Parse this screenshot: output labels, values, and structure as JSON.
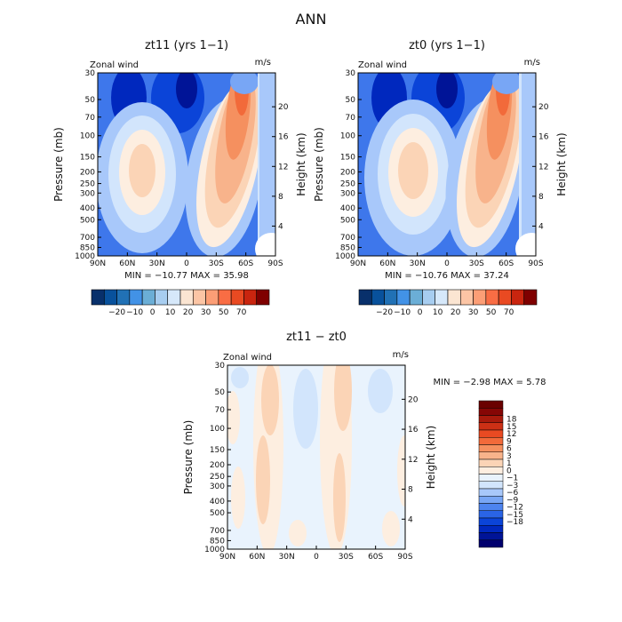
{
  "figure": {
    "title": "ANN"
  },
  "colors": {
    "ramp14": [
      "#08306b",
      "#08519c",
      "#2171b5",
      "#4292e6",
      "#6baed6",
      "#a7cdf0",
      "#d6e8fa",
      "#fbe5d2",
      "#fcc5a5",
      "#fc9e76",
      "#f96d44",
      "#e94a22",
      "#c9250f",
      "#7f0000"
    ],
    "ramp20": [
      "#00006e",
      "#001497",
      "#0028be",
      "#0b44d8",
      "#2a64e6",
      "#4d84ef",
      "#78a6f5",
      "#a8c8fa",
      "#d2e5fc",
      "#e9f3fd",
      "#fdeee0",
      "#fbd4b6",
      "#f8b38b",
      "#f5905f",
      "#f26a3a",
      "#e94a22",
      "#cc3015",
      "#a81a0c",
      "#860605",
      "#6a0000"
    ]
  },
  "chart_data": [
    {
      "type": "heatmap",
      "title": "zt11 (yrs 1−1)",
      "corner_left": "Zonal wind",
      "corner_right": "m/s",
      "ylabel": "Pressure (mb)",
      "ylabel_right": "Height (km)",
      "x_ticks": [
        "90N",
        "60N",
        "30N",
        "0",
        "30S",
        "60S",
        "90S"
      ],
      "y_ticks": [
        "30",
        "50",
        "70",
        "100",
        "150",
        "200",
        "250",
        "300",
        "400",
        "500",
        "700",
        "850",
        "1000"
      ],
      "height_ticks": [
        "20",
        "16",
        "12",
        "8",
        "4"
      ],
      "stats": "MIN = −10.77   MAX =  35.98",
      "colorbar_labels": [
        "−20",
        "−10",
        "0",
        "10",
        "20",
        "30",
        "50",
        "70"
      ],
      "min": -10.77,
      "max": 35.98
    },
    {
      "type": "heatmap",
      "title": "zt0 (yrs 1−1)",
      "corner_left": "Zonal wind",
      "corner_right": "m/s",
      "ylabel": "Pressure (mb)",
      "ylabel_right": "Height (km)",
      "x_ticks": [
        "90N",
        "60N",
        "30N",
        "0",
        "30S",
        "60S",
        "90S"
      ],
      "y_ticks": [
        "30",
        "50",
        "70",
        "100",
        "150",
        "200",
        "250",
        "300",
        "400",
        "500",
        "700",
        "850",
        "1000"
      ],
      "height_ticks": [
        "20",
        "16",
        "12",
        "8",
        "4"
      ],
      "stats": "MIN = −10.76   MAX =  37.24",
      "colorbar_labels": [
        "−20",
        "−10",
        "0",
        "10",
        "20",
        "30",
        "50",
        "70"
      ],
      "min": -10.76,
      "max": 37.24
    },
    {
      "type": "heatmap",
      "title": "zt11 − zt0",
      "corner_left": "Zonal wind",
      "corner_right": "m/s",
      "ylabel": "Pressure (mb)",
      "ylabel_right": "Height (km)",
      "x_ticks": [
        "90N",
        "60N",
        "30N",
        "0",
        "30S",
        "60S",
        "90S"
      ],
      "y_ticks": [
        "30",
        "50",
        "70",
        "100",
        "150",
        "200",
        "250",
        "300",
        "400",
        "500",
        "700",
        "850",
        "1000"
      ],
      "height_ticks": [
        "20",
        "16",
        "12",
        "8",
        "4"
      ],
      "stats": "MIN =   −2.98   MAX =    5.78",
      "colorbar_labels": [
        "18",
        "15",
        "12",
        "9",
        "6",
        "3",
        "1",
        "0",
        "−1",
        "−3",
        "−6",
        "−9",
        "−12",
        "−15",
        "−18"
      ],
      "min": -2.98,
      "max": 5.78
    }
  ]
}
